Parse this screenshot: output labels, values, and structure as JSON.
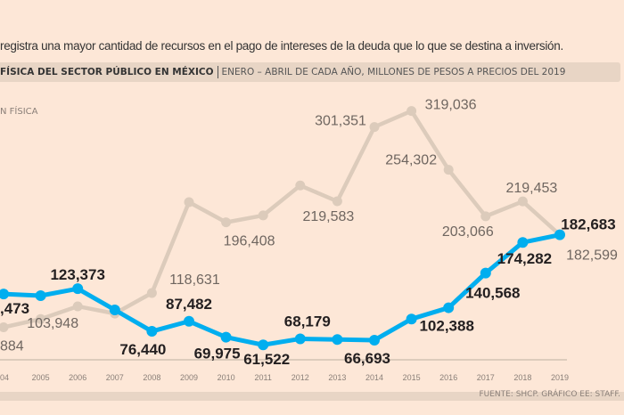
{
  "intro_text": "registra una mayor cantidad de recursos  en el pago de intereses de la deuda que lo que se destina a inversión.",
  "header": {
    "title": "FÍSICA DEL SECTOR PÚBLICO EN MÉXICO",
    "subtitle": "ENERO – ABRIL DE CADA AÑO,  MILLONES DE PESOS A PRECIOS DEL 2019"
  },
  "legend_label": "N FÍSICA",
  "source": "FUENTE: SHCP. GRÁFICO EE: STAFF.",
  "colors": {
    "background": "#fde7d7",
    "blue_series": "#00aeef",
    "gray_series": "#dccbbb",
    "band": "#e8d5c5"
  },
  "chart_data": {
    "type": "line",
    "categories": [
      "04",
      "2005",
      "2006",
      "2007",
      "2008",
      "2009",
      "2010",
      "2011",
      "2012",
      "2013",
      "2014",
      "2015",
      "2016",
      "2017",
      "2018",
      "2019"
    ],
    "series": [
      {
        "values": [
          117473,
          115700,
          123373,
          100000,
          76440,
          87482,
          69975,
          61522,
          68179,
          67400,
          66693,
          90000,
          102388,
          140568,
          174282,
          182683
        ],
        "labels": [
          ",473",
          null,
          "123,373",
          null,
          "76,440",
          "87,482",
          "69,975",
          "61,522",
          "68,179",
          null,
          "66,693",
          null,
          "102,388",
          "140,568",
          "174,282",
          "182,683"
        ]
      },
      {
        "values": [
          80884,
          90000,
          103948,
          96000,
          118631,
          218600,
          196408,
          204000,
          237000,
          219583,
          301351,
          319036,
          254302,
          203066,
          219453,
          182599
        ],
        "labels": [
          "884",
          null,
          "103,948",
          null,
          "118,631",
          null,
          "196,408",
          null,
          null,
          "219,583",
          "301,351",
          "319,036",
          "254,302",
          "203,066",
          "219,453",
          "182,599"
        ]
      }
    ],
    "grid": false
  }
}
